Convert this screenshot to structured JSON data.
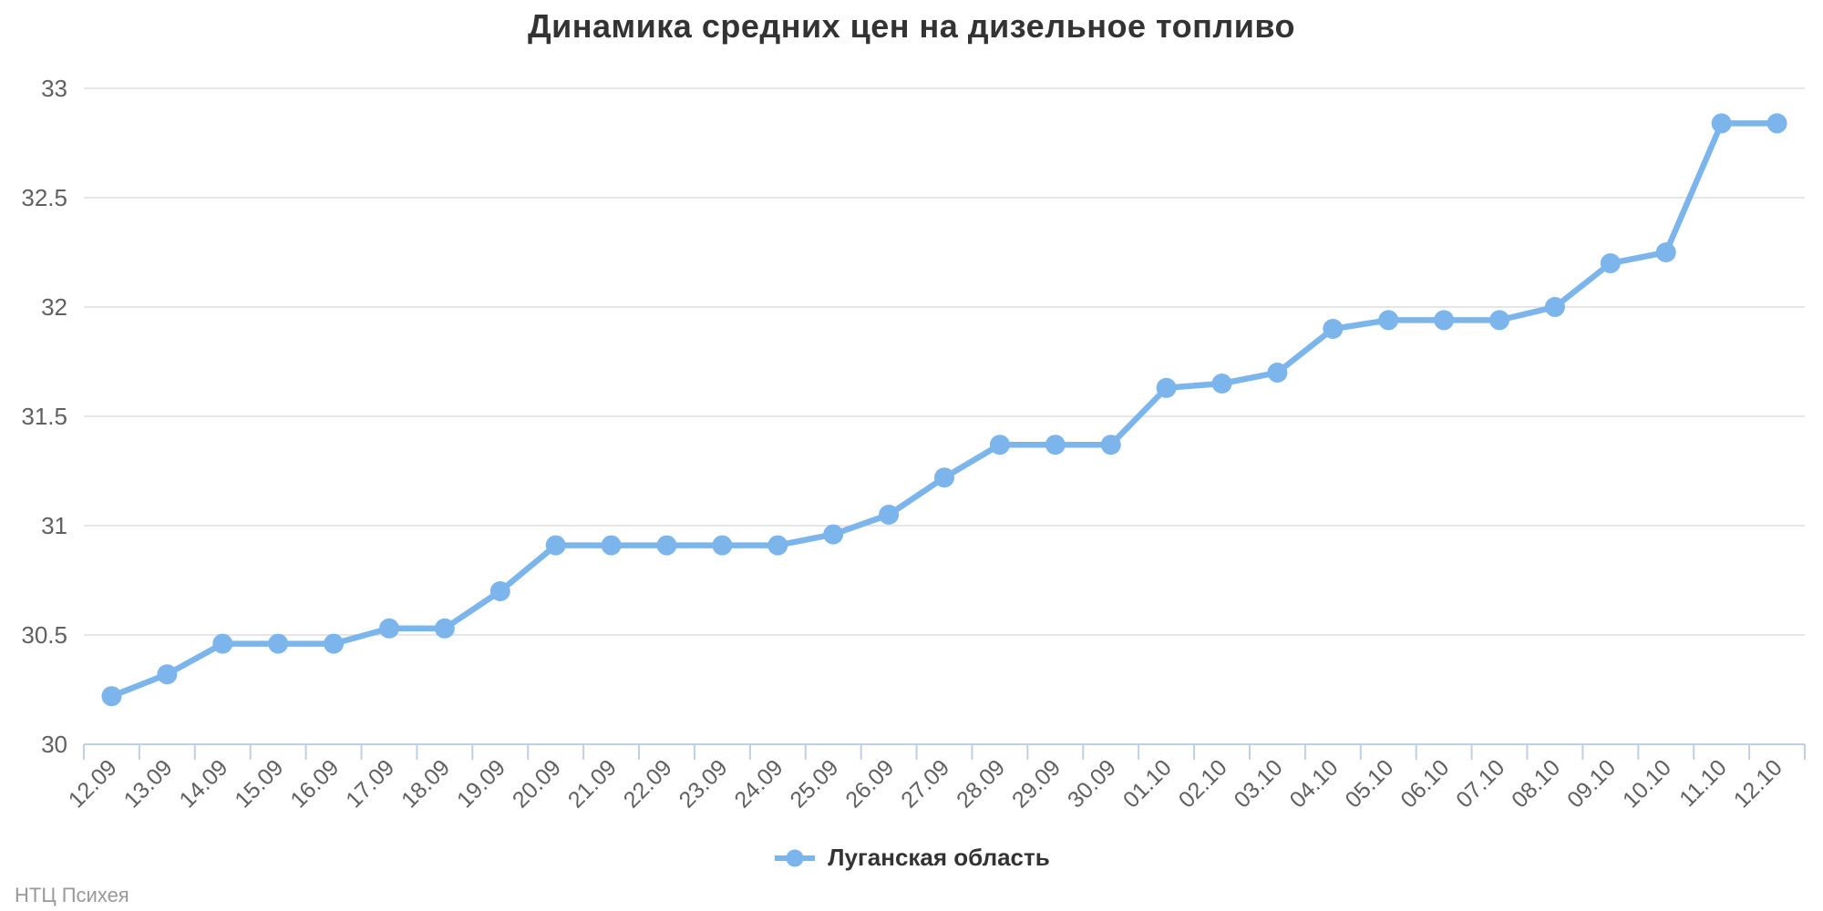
{
  "chart": {
    "title": "Динамика средних цен на дизельное топливо",
    "credits": "НТЦ Психея",
    "legend": {
      "label": "Луганская область"
    }
  },
  "colors": {
    "series": "#7cb5ec",
    "grid": "#e6e6e6",
    "axis_line": "#c0d0e0",
    "tick_label": "#606060",
    "title": "#333333",
    "legend_text": "#333333",
    "credits": "#999999",
    "background": "#ffffff"
  },
  "chart_data": {
    "type": "line",
    "title": "Динамика средних цен на дизельное топливо",
    "xlabel": "",
    "ylabel": "",
    "ylim": [
      30,
      33
    ],
    "yticks": [
      30,
      30.5,
      31,
      31.5,
      32,
      32.5,
      33
    ],
    "grid": true,
    "legend_position": "bottom-center",
    "marker": "circle",
    "categories": [
      "12.09",
      "13.09",
      "14.09",
      "15.09",
      "16.09",
      "17.09",
      "18.09",
      "19.09",
      "20.09",
      "21.09",
      "22.09",
      "23.09",
      "24.09",
      "25.09",
      "26.09",
      "27.09",
      "28.09",
      "29.09",
      "30.09",
      "01.10",
      "02.10",
      "03.10",
      "04.10",
      "05.10",
      "06.10",
      "07.10",
      "08.10",
      "09.10",
      "10.10",
      "11.10",
      "12.10"
    ],
    "series": [
      {
        "name": "Луганская область",
        "color": "#7cb5ec",
        "values": [
          30.22,
          30.32,
          30.46,
          30.46,
          30.46,
          30.53,
          30.53,
          30.7,
          30.91,
          30.91,
          30.91,
          30.91,
          30.91,
          30.96,
          31.05,
          31.22,
          31.37,
          31.37,
          31.37,
          31.63,
          31.65,
          31.7,
          31.9,
          31.94,
          31.94,
          31.94,
          32.0,
          32.2,
          32.25,
          32.84,
          32.84
        ]
      }
    ]
  }
}
